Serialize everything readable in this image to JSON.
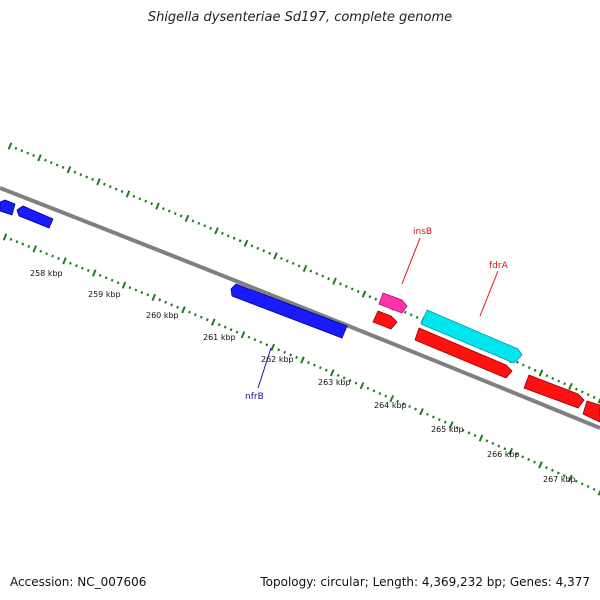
{
  "title": "Shigella dysenteriae Sd197, complete genome",
  "footer": {
    "accession": "Accession: NC_007606",
    "summary": "Topology: circular; Length: 4,369,232 bp; Genes: 4,377"
  },
  "scale_labels": [
    "258 kbp",
    "259 kbp",
    "260 kbp",
    "261 kbp",
    "262 kbp",
    "263 kbp",
    "264 kbp",
    "265 kbp",
    "266 kbp",
    "267 kbp"
  ],
  "gene_labels": {
    "insB": "insB",
    "fdrA": "fdrA",
    "nfrB": "nfrB"
  },
  "colors": {
    "backbone": "#808080",
    "ticks": "#1f7a1f",
    "blue_gene": "#1a1aff",
    "magenta_gene": "#ff33aa",
    "cyan_gene": "#00e5ee",
    "red_gene": "#ff1111",
    "blue_label": "#1a1aa0",
    "red_label": "#dd1111"
  }
}
